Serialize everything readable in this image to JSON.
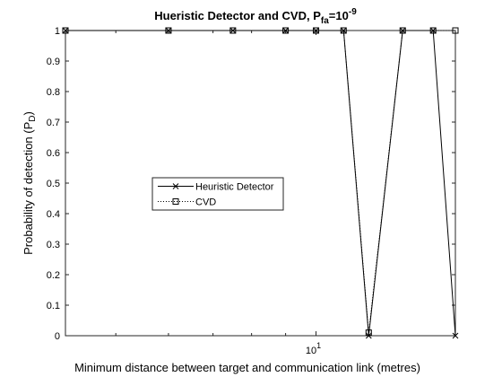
{
  "chart_data": {
    "type": "line",
    "title": {
      "main": "Hueristic Detector and CVD, P",
      "subscript": "fa",
      "mid": "=10",
      "superscript": "-9"
    },
    "xlabel": "Minimum distance between target and communication link (metres)",
    "ylabel": {
      "main": "Probability of detection (P",
      "subscript": "D",
      "close": ")"
    },
    "x_scale": "log",
    "xlim": [
      4.2,
      16.2
    ],
    "ylim": [
      0,
      1
    ],
    "x_ticks": [
      {
        "value": 10,
        "base": "10",
        "exp": "1"
      }
    ],
    "x_minor_ticks": [
      5,
      6,
      7,
      8,
      9
    ],
    "y_ticks": [
      {
        "value": 0,
        "label": "0"
      },
      {
        "value": 0.1,
        "label": "0.1"
      },
      {
        "value": 0.2,
        "label": "0.2"
      },
      {
        "value": 0.3,
        "label": "0.3"
      },
      {
        "value": 0.4,
        "label": "0.4"
      },
      {
        "value": 0.5,
        "label": "0.5"
      },
      {
        "value": 0.6,
        "label": "0.6"
      },
      {
        "value": 0.7,
        "label": "0.7"
      },
      {
        "value": 0.8,
        "label": "0.8"
      },
      {
        "value": 0.9,
        "label": "0.9"
      },
      {
        "value": 1,
        "label": "1"
      }
    ],
    "grid": false,
    "legend": {
      "position": "center-left",
      "entries": [
        "Heuristic Detector",
        "CVD"
      ]
    },
    "series": [
      {
        "name": "Heuristic Detector",
        "line_style": "solid",
        "marker": "x",
        "color": "#000000",
        "x": [
          4.2,
          6,
          7.5,
          9,
          10,
          11,
          12,
          13.5,
          15,
          16.2
        ],
        "y": [
          1,
          1,
          1,
          1,
          1,
          1,
          0,
          1,
          1,
          0
        ]
      },
      {
        "name": "CVD",
        "line_style": "dotted",
        "marker": "square",
        "color": "#000000",
        "x": [
          4.2,
          6,
          7.5,
          9,
          10,
          11,
          12,
          13.5,
          15,
          16.2
        ],
        "y": [
          1,
          1,
          1,
          1,
          1,
          1,
          0.01,
          1,
          1,
          1
        ]
      }
    ]
  }
}
